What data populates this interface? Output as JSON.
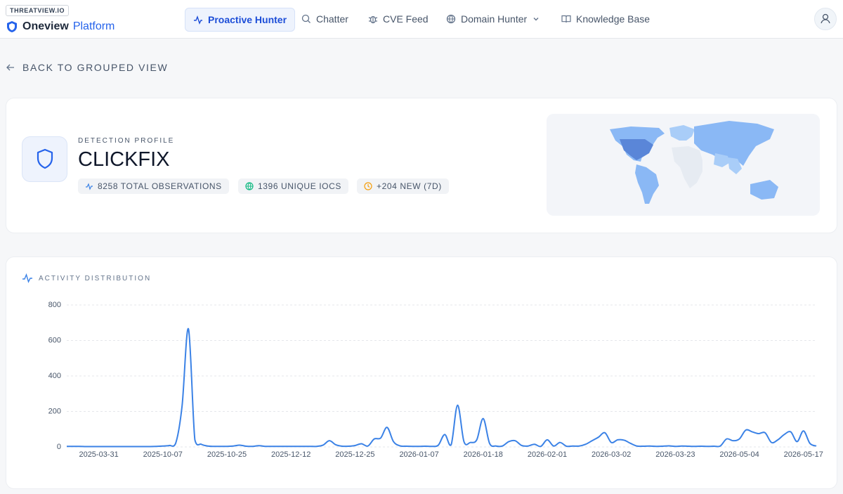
{
  "header": {
    "brand_badge": "THREATVIEW.IO",
    "brand_name": "Oneview",
    "brand_suffix": "Platform",
    "nav": [
      "Proactive Hunter",
      "Chatter",
      "CVE Feed",
      "Domain Hunter",
      "Knowledge Base"
    ]
  },
  "back_link": "BACK TO GROUPED VIEW",
  "profile": {
    "eyebrow": "DETECTION PROFILE",
    "title": "CLICKFIX",
    "stats": [
      "8258 TOTAL OBSERVATIONS",
      "1396 UNIQUE IOCS",
      "+204 NEW (7D)"
    ]
  },
  "chart_data": {
    "type": "line",
    "title": "ACTIVITY DISTRIBUTION",
    "color": "#3b82e6",
    "grid": true,
    "ylim": [
      0,
      800
    ],
    "yticks": [
      0,
      200,
      400,
      600,
      800
    ],
    "categories": [
      null,
      null,
      null,
      null,
      null,
      "2025-03-31",
      null,
      null,
      null,
      null,
      null,
      null,
      null,
      null,
      null,
      "2025-10-07",
      null,
      null,
      null,
      null,
      null,
      null,
      null,
      null,
      null,
      "2025-10-25",
      null,
      null,
      null,
      null,
      null,
      null,
      null,
      null,
      null,
      "2025-12-12",
      null,
      null,
      null,
      null,
      null,
      null,
      null,
      null,
      null,
      "2025-12-25",
      null,
      null,
      null,
      null,
      null,
      null,
      null,
      null,
      null,
      "2026-01-07",
      null,
      null,
      null,
      null,
      null,
      null,
      null,
      null,
      null,
      "2026-01-18",
      null,
      null,
      null,
      null,
      null,
      null,
      null,
      null,
      null,
      "2026-02-01",
      null,
      null,
      null,
      null,
      null,
      null,
      null,
      null,
      null,
      "2026-03-02",
      null,
      null,
      null,
      null,
      null,
      null,
      null,
      null,
      null,
      "2026-03-23",
      null,
      null,
      null,
      null,
      null,
      null,
      null,
      null,
      null,
      "2026-05-04",
      null,
      null,
      null,
      null,
      null,
      null,
      null,
      null,
      null,
      "2026-05-17",
      null,
      null
    ],
    "values": [
      3,
      3,
      3,
      2,
      2,
      2,
      2,
      2,
      2,
      2,
      2,
      2,
      2,
      2,
      3,
      5,
      8,
      20,
      230,
      665,
      40,
      15,
      5,
      3,
      3,
      3,
      5,
      10,
      4,
      3,
      7,
      3,
      3,
      3,
      3,
      3,
      3,
      3,
      3,
      3,
      10,
      35,
      12,
      4,
      4,
      8,
      18,
      5,
      45,
      50,
      110,
      30,
      6,
      4,
      3,
      3,
      4,
      3,
      10,
      70,
      12,
      235,
      30,
      25,
      40,
      160,
      20,
      5,
      5,
      30,
      35,
      8,
      5,
      15,
      3,
      40,
      5,
      25,
      4,
      5,
      5,
      15,
      35,
      55,
      80,
      25,
      40,
      38,
      20,
      5,
      4,
      5,
      3,
      4,
      6,
      3,
      5,
      4,
      3,
      4,
      3,
      4,
      5,
      45,
      35,
      45,
      95,
      85,
      75,
      80,
      25,
      40,
      70,
      85,
      30,
      90,
      20,
      5
    ]
  }
}
